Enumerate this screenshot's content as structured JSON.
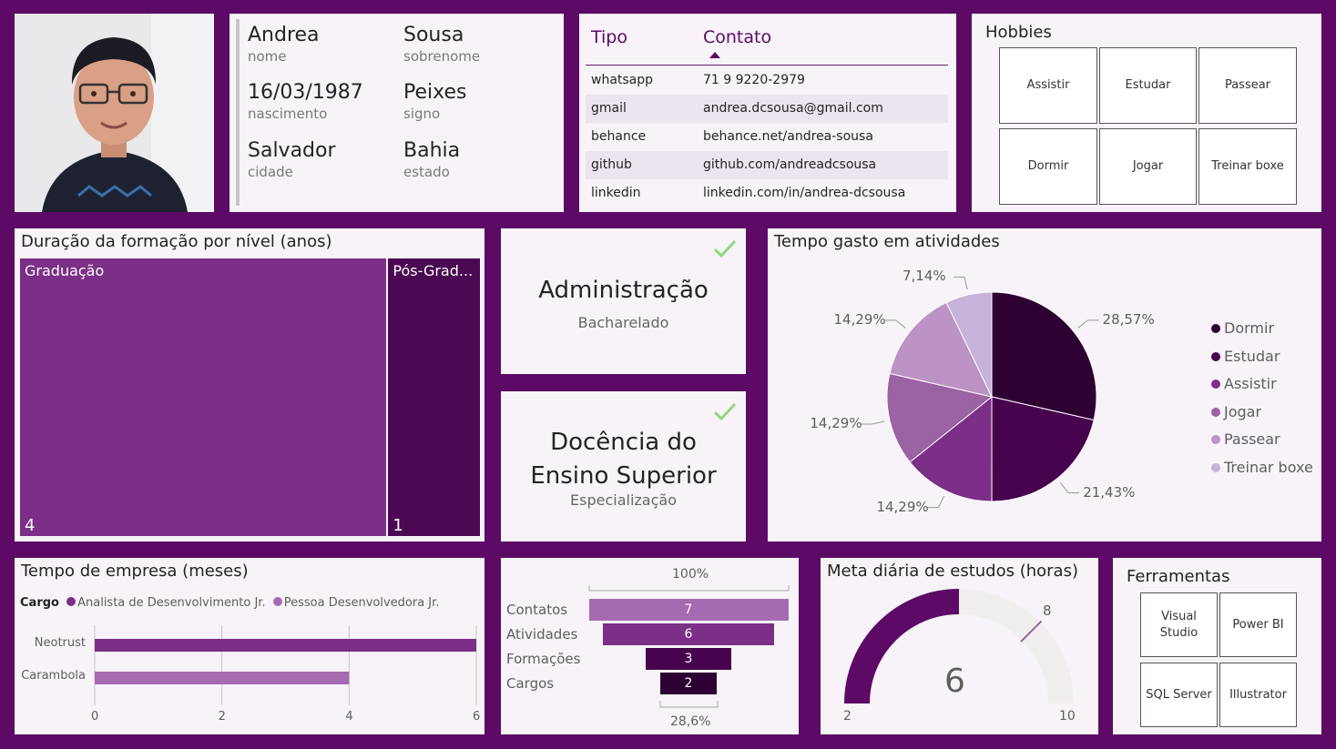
{
  "profile": {
    "fields": [
      {
        "value": "Andrea",
        "label": "nome"
      },
      {
        "value": "Sousa",
        "label": "sobrenome"
      },
      {
        "value": "16/03/1987",
        "label": "nascimento"
      },
      {
        "value": "Peixes",
        "label": "signo"
      },
      {
        "value": "Salvador",
        "label": "cidade"
      },
      {
        "value": "Bahia",
        "label": "estado"
      }
    ]
  },
  "contacts": {
    "headers": [
      "Tipo",
      "Contato"
    ],
    "rows": [
      {
        "tipo": "whatsapp",
        "contato": "71 9 9220-2979"
      },
      {
        "tipo": "gmail",
        "contato": "andrea.dcsousa@gmail.com"
      },
      {
        "tipo": "behance",
        "contato": "behance.net/andrea-sousa"
      },
      {
        "tipo": "github",
        "contato": "github.com/andreadcsousa"
      },
      {
        "tipo": "linkedin",
        "contato": "linkedin.com/in/andrea-dcsousa"
      }
    ]
  },
  "hobbies": {
    "title": "Hobbies",
    "items": [
      "Assistir",
      "Estudar",
      "Passear",
      "Dormir",
      "Jogar",
      "Treinar boxe"
    ]
  },
  "degrees": [
    {
      "title": "Administração",
      "subtitle": "Bacharelado"
    },
    {
      "title": "Docência do Ensino Superior",
      "subtitle": "Especialização"
    }
  ],
  "tools": {
    "title": "Ferramentas",
    "items": [
      "Visual Studio",
      "Power BI",
      "SQL Server",
      "Illustrator"
    ]
  },
  "colors": {
    "background": "#5c0a66",
    "card": "#f7f3f8",
    "check": "#8fd97d"
  },
  "chart_data": [
    {
      "type": "treemap",
      "title": "Duração da formação por nível (anos)",
      "categories": [
        "Graduação",
        "Pós-Grad..."
      ],
      "values": [
        4,
        1
      ],
      "colors": [
        "#7b2f86",
        "#4a0952"
      ]
    },
    {
      "type": "pie",
      "title": "Tempo gasto em atividades",
      "categories": [
        "Dormir",
        "Estudar",
        "Assistir",
        "Jogar",
        "Passear",
        "Treinar boxe"
      ],
      "values": [
        28.57,
        21.43,
        14.29,
        14.29,
        14.29,
        7.14
      ],
      "labels": [
        "28,57%",
        "21,43%",
        "14,29%",
        "14,29%",
        "14,29%",
        "7,14%"
      ],
      "colors": [
        "#2d0233",
        "#48034f",
        "#7b2f86",
        "#9b62a4",
        "#bd92c4",
        "#c6b3d9"
      ],
      "legend": "right"
    },
    {
      "type": "bar",
      "orientation": "horizontal",
      "title": "Tempo de empresa (meses)",
      "legend_title": "Cargo",
      "categories": [
        "Neotrust",
        "Carambola"
      ],
      "series": [
        {
          "name": "Analista de Desenvolvimento Jr.",
          "values": [
            6,
            0
          ],
          "color": "#7b2f86"
        },
        {
          "name": "Pessoa Desenvolvedora Jr.",
          "values": [
            0,
            4
          ],
          "color": "#a56bb0"
        }
      ],
      "xlim": [
        0,
        6
      ],
      "xticks": [
        "0",
        "2",
        "4",
        "6"
      ]
    },
    {
      "type": "funnel",
      "categories": [
        "Contatos",
        "Atividades",
        "Formações",
        "Cargos"
      ],
      "values": [
        7,
        6,
        3,
        2
      ],
      "top_label": "100%",
      "bottom_label": "28,6%",
      "colors": [
        "#a56bb0",
        "#7b2f86",
        "#48034f",
        "#2d0233"
      ]
    },
    {
      "type": "gauge",
      "title": "Meta diária de estudos (horas)",
      "value": 6,
      "min": 2,
      "max": 10,
      "target": 8,
      "min_label": "2",
      "max_label": "10",
      "value_label": "6",
      "target_label": "8",
      "colors": [
        "#5c0a66",
        "#f0efee",
        "#9b62a4"
      ]
    }
  ]
}
